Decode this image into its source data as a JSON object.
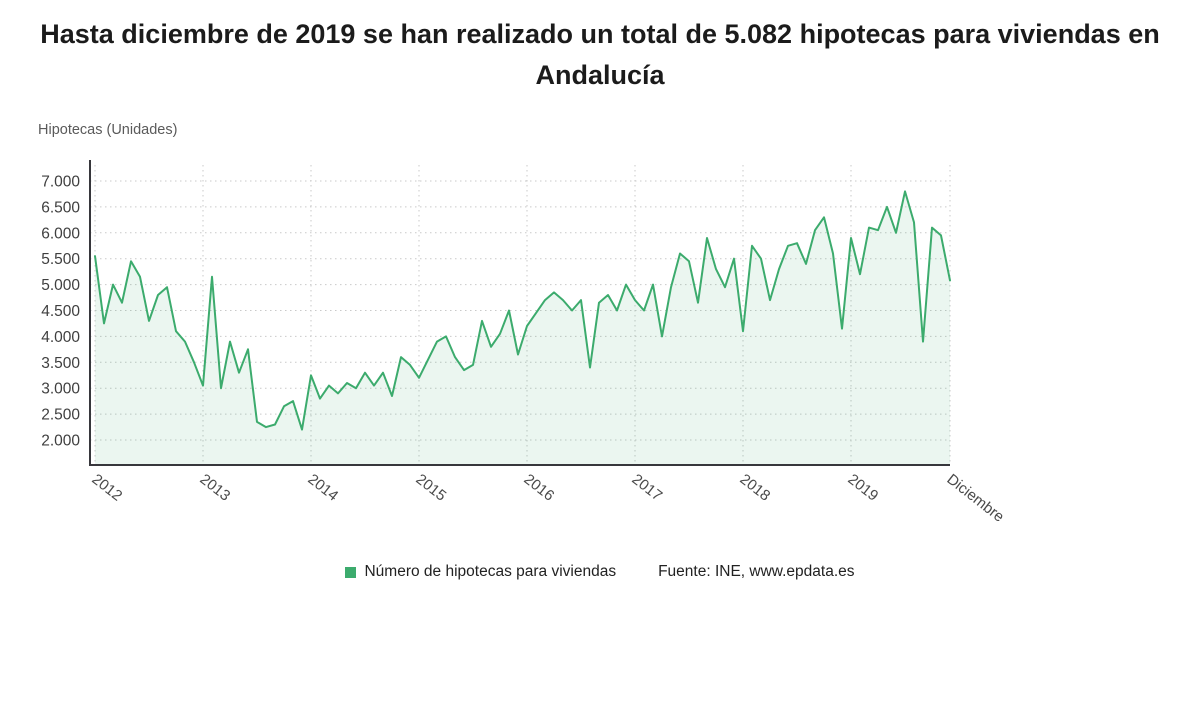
{
  "title": "Hasta diciembre de 2019 se han realizado un total de 5.082 hipotecas para viviendas en Andalucía",
  "y_axis_title": "Hipotecas (Unidades)",
  "legend": {
    "series_label": "Número de hipotecas para viviendas",
    "source": "Fuente: INE, www.epdata.es"
  },
  "colors": {
    "line": "#3cab6d",
    "area": "rgba(60,171,109,0.10)",
    "grid": "#c9c9c9",
    "axis": "#37373c",
    "title_text": "#1b1b1b"
  },
  "chart_data": {
    "type": "line",
    "title": "Hasta diciembre de 2019 se han realizado un total de 5.082 hipotecas para viviendas en Andalucía",
    "ylabel": "Hipotecas (Unidades)",
    "xlabel": "",
    "frequency": "monthly",
    "x_start": "2012-01",
    "x_end": "2019-12",
    "grid": "dotted",
    "legend_position": "bottom",
    "series_name": "Número de hipotecas para viviendas",
    "source": "Fuente: INE, www.epdata.es",
    "ylim": [
      1700,
      7200
    ],
    "y_tick_values": [
      2000,
      2500,
      3000,
      3500,
      4000,
      4500,
      5000,
      5500,
      6000,
      6500,
      7000
    ],
    "y_tick_labels": [
      "2.000",
      "2.500",
      "3.000",
      "3.500",
      "4.000",
      "4.500",
      "5.000",
      "5.500",
      "6.000",
      "6.500",
      "7.000"
    ],
    "x_tick_labels": [
      "2012",
      "2013",
      "2014",
      "2015",
      "2016",
      "2017",
      "2018",
      "2019",
      "Diciembre"
    ],
    "x_tick_indices": [
      0,
      12,
      24,
      36,
      48,
      60,
      72,
      84,
      95
    ],
    "values": [
      5550,
      4250,
      5000,
      4650,
      5450,
      5150,
      4300,
      4800,
      4950,
      4100,
      3900,
      3500,
      3050,
      5150,
      3000,
      3900,
      3300,
      3750,
      2350,
      2250,
      2300,
      2650,
      2750,
      2200,
      3250,
      2800,
      3050,
      2900,
      3100,
      3000,
      3300,
      3050,
      3300,
      2850,
      3600,
      3450,
      3200,
      3550,
      3900,
      4000,
      3600,
      3350,
      3450,
      4300,
      3800,
      4050,
      4500,
      3650,
      4200,
      4450,
      4700,
      4850,
      4700,
      4500,
      4700,
      3400,
      4650,
      4800,
      4500,
      5000,
      4700,
      4500,
      5000,
      4000,
      4950,
      5600,
      5450,
      4650,
      5900,
      5300,
      4950,
      5500,
      4100,
      5750,
      5500,
      4700,
      5300,
      5750,
      5800,
      5400,
      6050,
      6300,
      5600,
      4150,
      5900,
      5200,
      6100,
      6050,
      6500,
      6000,
      6800,
      6200,
      3900,
      6100,
      5950,
      5082
    ],
    "last_value": 5082
  }
}
